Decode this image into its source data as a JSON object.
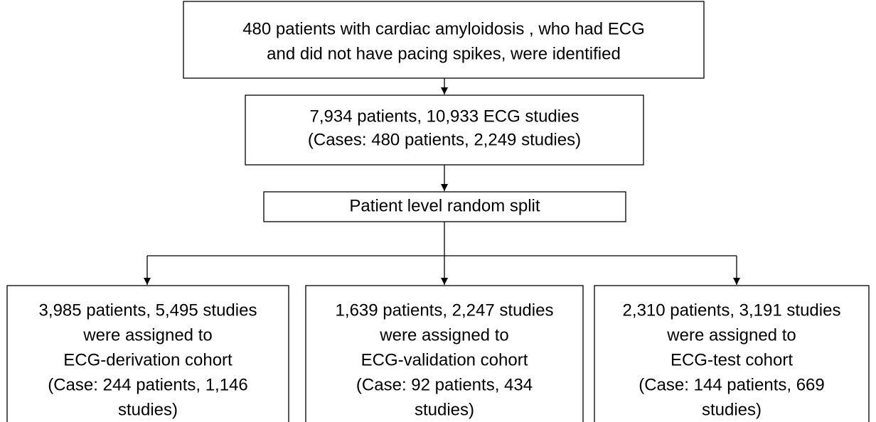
{
  "nodes": [
    {
      "lines": [
        "480 patients with cardiac amyloidosis , who had ECG",
        "and did not have pacing spikes, were identified"
      ]
    },
    {
      "lines": [
        "7,934 patients, 10,933 ECG studies",
        "(Cases: 480 patients, 2,249 studies)"
      ]
    },
    {
      "lines": [
        "Patient level random split"
      ]
    },
    {
      "lines": [
        "3,985 patients, 5,495 studies",
        "were assigned to",
        "ECG-derivation cohort",
        "(Case: 244 patients, 1,146",
        "studies)"
      ]
    },
    {
      "lines": [
        "1,639 patients, 2,247 studies",
        "were assigned to",
        "ECG-validation cohort",
        "(Case: 92 patients, 434",
        "studies)"
      ]
    },
    {
      "lines": [
        "2,310 patients, 3,191 studies",
        "were assigned to",
        "ECG-test cohort",
        "(Case: 144 patients, 669",
        "studies)"
      ]
    }
  ]
}
